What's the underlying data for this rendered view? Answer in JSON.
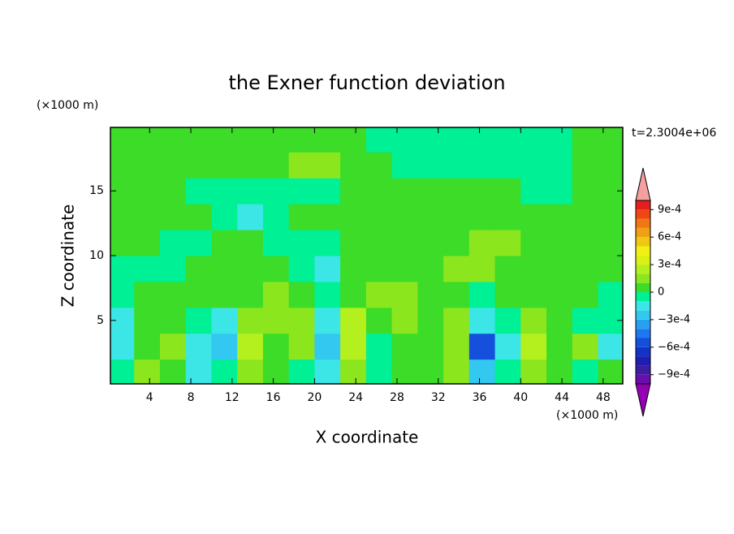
{
  "chart_data": {
    "type": "contour",
    "title": "the Exner function deviation",
    "x_label": "X coordinate",
    "y_label": "Z coordinate",
    "x_unit": "(×1000 m)",
    "y_unit": "(×1000 m)",
    "annotation": "t=2.3004e+06",
    "xlim": [
      0.2,
      49.9
    ],
    "ylim": [
      0.1,
      19.9
    ],
    "xticks": [
      4,
      8,
      12,
      16,
      20,
      24,
      28,
      32,
      36,
      40,
      44,
      48
    ],
    "yticks": [
      5,
      10,
      15
    ],
    "x": [
      1.25,
      3.75,
      6.25,
      8.75,
      11.25,
      13.75,
      16.25,
      18.75,
      21.25,
      23.75,
      26.25,
      28.75,
      31.25,
      33.75,
      36.25,
      38.75,
      41.25,
      43.75,
      46.25,
      48.75
    ],
    "z": [
      1,
      3,
      5,
      7,
      9,
      11,
      13,
      15,
      17,
      19
    ],
    "values": [
      [
        -5e-05,
        0.00015,
        5e-05,
        -0.00015,
        -5e-05,
        0.00015,
        5e-05,
        -5e-05,
        -0.00015,
        0.00015,
        -5e-05,
        5e-05,
        5e-05,
        0.00015,
        -0.00025,
        -5e-05,
        0.00015,
        5e-05,
        -5e-05,
        5e-05
      ],
      [
        -0.00015,
        5e-05,
        0.00015,
        -0.00015,
        -0.00025,
        0.00025,
        5e-05,
        0.00015,
        -0.00025,
        0.00025,
        -5e-05,
        5e-05,
        5e-05,
        0.00015,
        -0.00055,
        -0.00015,
        0.00025,
        5e-05,
        0.00015,
        -0.00015
      ],
      [
        -0.00015,
        5e-05,
        5e-05,
        -5e-05,
        -0.00015,
        0.00015,
        0.00015,
        0.00015,
        -0.00015,
        0.00025,
        5e-05,
        0.00015,
        5e-05,
        0.00015,
        -0.00015,
        -5e-05,
        0.00015,
        5e-05,
        -5e-05,
        -5e-05
      ],
      [
        -5e-05,
        5e-05,
        5e-05,
        5e-05,
        5e-05,
        5e-05,
        0.00015,
        5e-05,
        -5e-05,
        5e-05,
        0.00015,
        0.00015,
        5e-05,
        5e-05,
        -5e-05,
        5e-05,
        5e-05,
        5e-05,
        5e-05,
        -5e-05
      ],
      [
        -5e-05,
        -5e-05,
        -5e-05,
        5e-05,
        5e-05,
        5e-05,
        5e-05,
        -5e-05,
        -0.00015,
        5e-05,
        5e-05,
        5e-05,
        5e-05,
        0.00015,
        0.00015,
        5e-05,
        5e-05,
        5e-05,
        5e-05,
        5e-05
      ],
      [
        5e-05,
        5e-05,
        -5e-05,
        -5e-05,
        5e-05,
        5e-05,
        -5e-05,
        -5e-05,
        -5e-05,
        5e-05,
        5e-05,
        5e-05,
        5e-05,
        5e-05,
        0.00015,
        0.00015,
        5e-05,
        5e-05,
        5e-05,
        5e-05
      ],
      [
        5e-05,
        5e-05,
        5e-05,
        5e-05,
        -5e-05,
        -0.00015,
        -5e-05,
        5e-05,
        5e-05,
        5e-05,
        5e-05,
        5e-05,
        5e-05,
        5e-05,
        5e-05,
        5e-05,
        5e-05,
        5e-05,
        5e-05,
        5e-05
      ],
      [
        5e-05,
        5e-05,
        5e-05,
        -5e-05,
        -5e-05,
        -5e-05,
        -5e-05,
        -5e-05,
        -5e-05,
        5e-05,
        5e-05,
        5e-05,
        5e-05,
        5e-05,
        5e-05,
        5e-05,
        -5e-05,
        -5e-05,
        5e-05,
        5e-05
      ],
      [
        5e-05,
        5e-05,
        5e-05,
        5e-05,
        5e-05,
        5e-05,
        5e-05,
        0.00015,
        0.00015,
        5e-05,
        5e-05,
        -5e-05,
        -5e-05,
        -5e-05,
        -5e-05,
        -5e-05,
        -5e-05,
        -5e-05,
        5e-05,
        5e-05
      ],
      [
        5e-05,
        5e-05,
        5e-05,
        5e-05,
        5e-05,
        5e-05,
        5e-05,
        5e-05,
        5e-05,
        5e-05,
        -5e-05,
        -5e-05,
        -5e-05,
        -5e-05,
        -5e-05,
        -5e-05,
        -5e-05,
        -5e-05,
        5e-05,
        5e-05
      ]
    ],
    "levels": [
      -0.001,
      -0.0009,
      -0.0008,
      -0.0007,
      -0.0006,
      -0.0005,
      -0.0004,
      -0.0003,
      -0.0002,
      -0.0001,
      0,
      0.0001,
      0.0002,
      0.0003,
      0.0004,
      0.0005,
      0.0006,
      0.0007,
      0.0008,
      0.0009,
      0.001
    ],
    "colors": [
      "#6a0dad",
      "#3c1ea0",
      "#1e1eb4",
      "#1432c8",
      "#1450dc",
      "#1e78f0",
      "#28a0f0",
      "#32c8f0",
      "#3ce6e6",
      "#00f096",
      "#3cdc28",
      "#8ce61e",
      "#b4f01e",
      "#dcf014",
      "#f0f014",
      "#f0c814",
      "#f0a014",
      "#f07814",
      "#f04614",
      "#e61e1e"
    ],
    "under_color": "#9600b4",
    "over_color": "#f4a0a0",
    "colorbar_ticks": [
      {
        "value": 0.0009,
        "label": "9e-4"
      },
      {
        "value": 0.0006,
        "label": "6e-4"
      },
      {
        "value": 0.0003,
        "label": "3e-4"
      },
      0,
      {
        "value": -0.0003,
        "label": "−3e-4"
      },
      {
        "value": -0.0006,
        "label": "−6e-4"
      },
      {
        "value": -0.0009,
        "label": "−9e-4"
      }
    ]
  }
}
